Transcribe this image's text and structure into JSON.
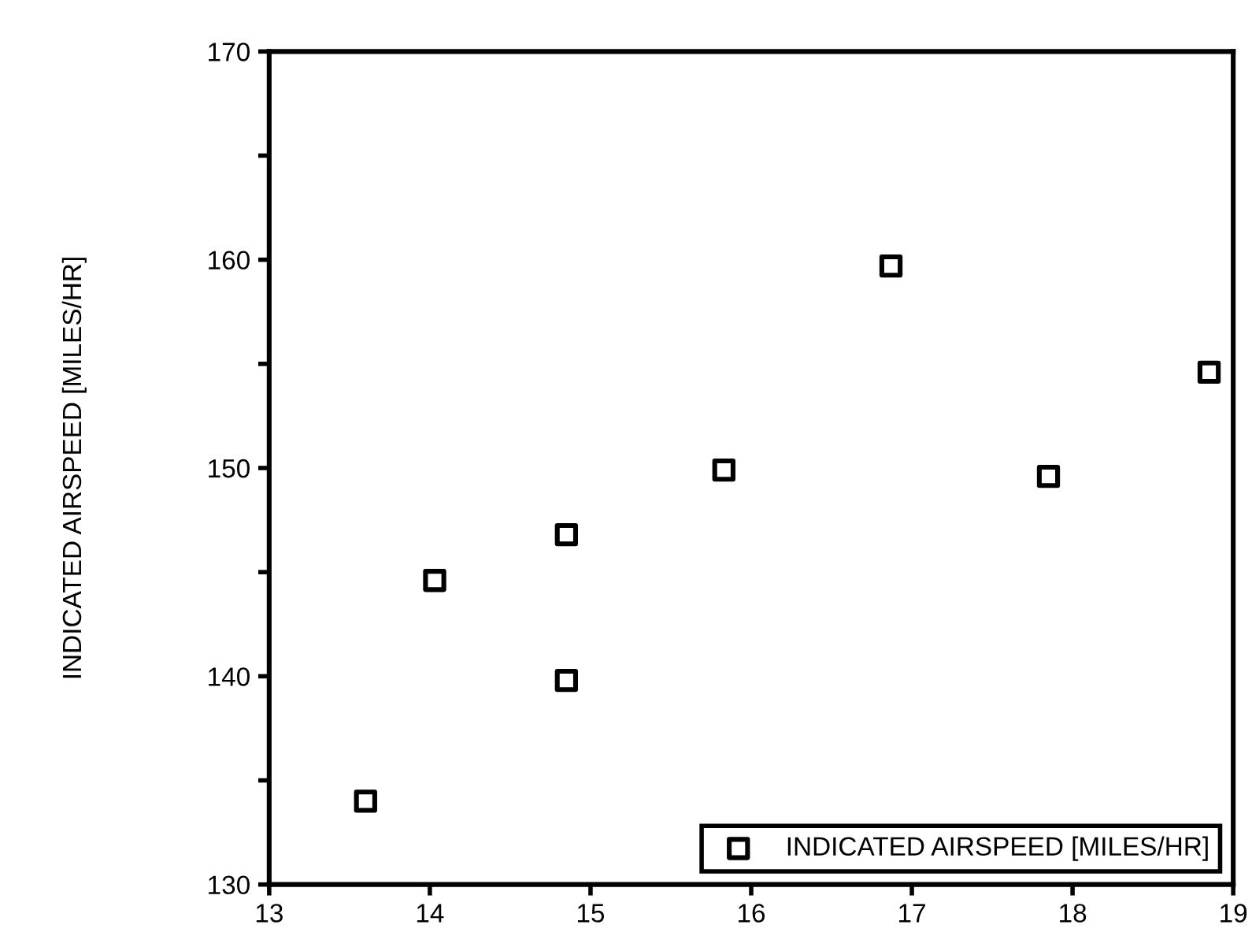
{
  "chart_data": {
    "type": "scatter",
    "ylabel": "INDICATED AIRSPEED [MILES/HR]",
    "xlim": [
      13,
      19
    ],
    "ylim": [
      130,
      170
    ],
    "xticks": [
      13,
      14,
      15,
      16,
      17,
      18,
      19
    ],
    "yticks": [
      130,
      {
        "value": 135,
        "label": null
      },
      140,
      {
        "value": 145,
        "label": null
      },
      150,
      {
        "value": 155,
        "label": null
      },
      160,
      {
        "value": 165,
        "label": null
      },
      170
    ],
    "grid": false,
    "legend": "bottom right",
    "marker": "square",
    "series": [
      {
        "name": "INDICATED AIRSPEED [MILES/HR]",
        "color": "#000000",
        "x": [
          13.6,
          14.03,
          14.85,
          14.85,
          15.83,
          16.87,
          17.85,
          18.85
        ],
        "values": [
          134,
          144.6,
          146.8,
          139.8,
          149.9,
          159.7,
          149.6,
          154.6
        ]
      }
    ]
  }
}
